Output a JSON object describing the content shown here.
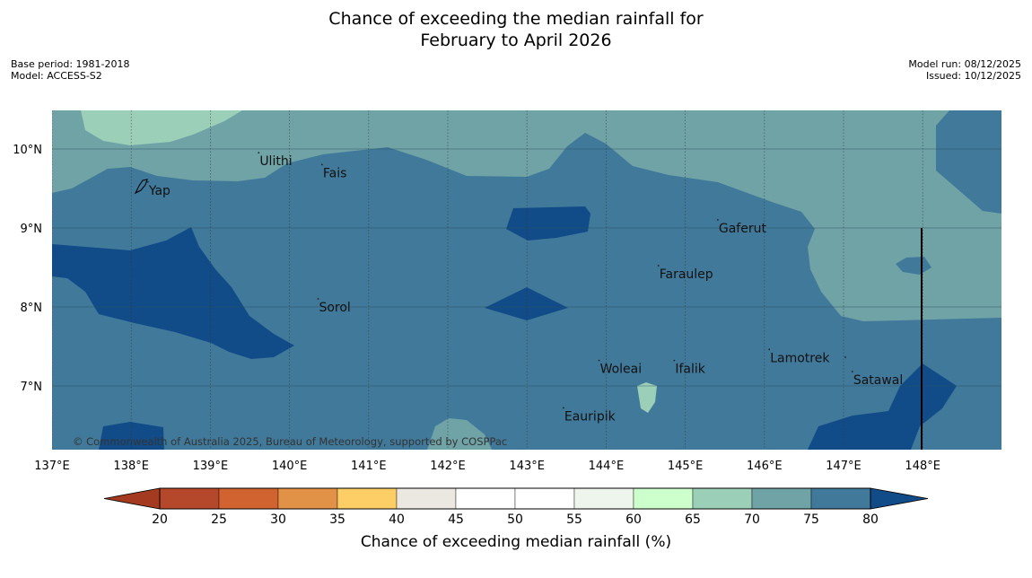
{
  "title": {
    "line1": "Chance of exceeding the median rainfall for",
    "line2": "February to April 2026"
  },
  "meta": {
    "base_period": "Base period: 1981-2018",
    "model": "Model: ACCESS-S2",
    "model_run": "Model run: 08/12/2025",
    "issued": "Issued: 10/12/2025"
  },
  "map": {
    "lon_range": [
      137,
      149
    ],
    "lat_range": [
      6.2,
      10.5
    ],
    "lon_ticks": [
      "137°E",
      "138°E",
      "139°E",
      "140°E",
      "141°E",
      "142°E",
      "143°E",
      "144°E",
      "145°E",
      "146°E",
      "147°E",
      "148°E"
    ],
    "lat_ticks": [
      "10°N",
      "9°N",
      "8°N",
      "7°N"
    ],
    "places": [
      {
        "name": "Ulithi",
        "lon": 139.6,
        "lat": 9.85
      },
      {
        "name": "Fais",
        "lon": 140.4,
        "lat": 9.7
      },
      {
        "name": "Yap",
        "lon": 138.2,
        "lat": 9.48
      },
      {
        "name": "Gaferut",
        "lon": 145.4,
        "lat": 9.0
      },
      {
        "name": "Faraulep",
        "lon": 144.65,
        "lat": 8.42
      },
      {
        "name": "Sorol",
        "lon": 140.35,
        "lat": 8.0
      },
      {
        "name": "Woleai",
        "lon": 143.9,
        "lat": 7.22
      },
      {
        "name": "Ifalik",
        "lon": 144.85,
        "lat": 7.22
      },
      {
        "name": "Lamotrek",
        "lon": 146.05,
        "lat": 7.36
      },
      {
        "name": "Satawal",
        "lon": 147.1,
        "lat": 7.08
      },
      {
        "name": "Eauripik",
        "lon": 143.45,
        "lat": 6.62
      }
    ],
    "copyright": "© Commonwealth of Australia 2025, Bureau of Meteorology, supported by COSPPac"
  },
  "colorbar": {
    "ticks": [
      "20",
      "25",
      "30",
      "35",
      "40",
      "45",
      "50",
      "55",
      "60",
      "65",
      "70",
      "75",
      "80"
    ],
    "colors": [
      "#b5482a",
      "#d0632f",
      "#e29246",
      "#fdcd66",
      "#ebe7e1",
      "#ffffff",
      "#ffffff",
      "#eef5ec",
      "#ccffcc",
      "#9ccfb7",
      "#6fa3a6",
      "#41799a"
    ],
    "under_color": "#a43b20",
    "over_color": "#124c88",
    "label": "Chance of exceeding median rainfall (%)"
  },
  "colors": {
    "band_60_65": "#ccffcc",
    "band_65_70": "#9ccfb7",
    "band_70_75": "#6fa3a6",
    "band_75_80": "#41799a",
    "band_over_80": "#124c88"
  }
}
